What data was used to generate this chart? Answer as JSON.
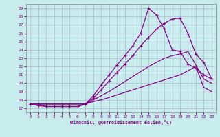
{
  "xlabel": "Windchill (Refroidissement éolien,°C)",
  "bg_color": "#c8ecec",
  "line_color": "#880088",
  "grid_color": "#aaaacc",
  "xlim": [
    -0.5,
    23.5
  ],
  "ylim": [
    16.5,
    29.5
  ],
  "xticks": [
    0,
    1,
    2,
    3,
    4,
    5,
    6,
    7,
    8,
    9,
    10,
    11,
    12,
    13,
    14,
    15,
    16,
    17,
    18,
    19,
    20,
    21,
    22,
    23
  ],
  "yticks": [
    17,
    18,
    19,
    20,
    21,
    22,
    23,
    24,
    25,
    26,
    27,
    28,
    29
  ],
  "line1_x": [
    0,
    1,
    2,
    3,
    4,
    5,
    6,
    7,
    8,
    9,
    10,
    11,
    12,
    13,
    14,
    15,
    16,
    17,
    18,
    19,
    20,
    21,
    22,
    23
  ],
  "line1_y": [
    17.5,
    17.5,
    17.5,
    17.5,
    17.5,
    17.5,
    17.5,
    17.5,
    17.8,
    18.0,
    18.3,
    18.6,
    18.9,
    19.2,
    19.5,
    19.8,
    20.1,
    20.4,
    20.7,
    21.0,
    21.5,
    22.0,
    19.5,
    19.0
  ],
  "line2_x": [
    0,
    1,
    2,
    3,
    4,
    5,
    6,
    7,
    8,
    9,
    10,
    11,
    12,
    13,
    14,
    15,
    16,
    17,
    18,
    19,
    20,
    21,
    22,
    23
  ],
  "line2_y": [
    17.5,
    17.5,
    17.5,
    17.5,
    17.5,
    17.5,
    17.5,
    17.5,
    18.0,
    18.5,
    19.0,
    19.6,
    20.2,
    20.8,
    21.4,
    22.0,
    22.5,
    23.0,
    23.3,
    23.5,
    23.8,
    22.2,
    20.5,
    20.0
  ],
  "line3_x": [
    0,
    1,
    2,
    3,
    4,
    5,
    6,
    7,
    8,
    9,
    10,
    11,
    12,
    13,
    14,
    15,
    16,
    17,
    18,
    19,
    20,
    21,
    22,
    23
  ],
  "line3_y": [
    17.5,
    17.3,
    17.2,
    17.2,
    17.2,
    17.2,
    17.2,
    17.5,
    18.2,
    19.2,
    20.3,
    21.3,
    22.3,
    23.3,
    24.5,
    25.5,
    26.5,
    27.2,
    27.7,
    27.8,
    26.0,
    23.5,
    22.5,
    20.5
  ],
  "line4_x": [
    0,
    1,
    2,
    3,
    4,
    5,
    6,
    7,
    8,
    9,
    10,
    11,
    12,
    13,
    14,
    15,
    16,
    17,
    18,
    19,
    20,
    21,
    22,
    23
  ],
  "line4_y": [
    17.5,
    17.5,
    17.2,
    17.2,
    17.2,
    17.2,
    17.2,
    17.5,
    18.5,
    19.8,
    21.0,
    22.2,
    23.3,
    24.5,
    26.0,
    29.0,
    28.2,
    26.5,
    24.0,
    23.8,
    22.3,
    21.8,
    21.0,
    20.5
  ]
}
